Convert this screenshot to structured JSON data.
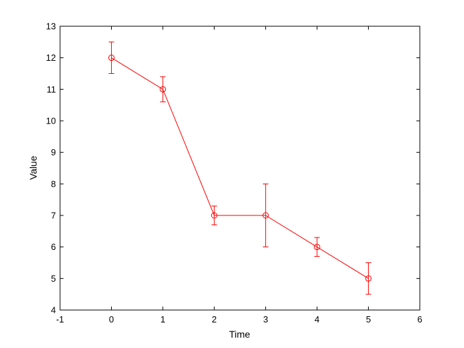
{
  "chart_data": {
    "type": "line",
    "title": "",
    "xlabel": "Time",
    "ylabel": "Value",
    "xlim": [
      -1,
      6
    ],
    "ylim": [
      4,
      13
    ],
    "xticks": [
      -1,
      0,
      1,
      2,
      3,
      4,
      5,
      6
    ],
    "yticks": [
      4,
      5,
      6,
      7,
      8,
      9,
      10,
      11,
      12,
      13
    ],
    "grid": false,
    "legend": "none",
    "series": [
      {
        "color": "#ff0000",
        "marker": "circle",
        "x": [
          0,
          1,
          2,
          3,
          4,
          5
        ],
        "y": [
          12,
          11,
          7,
          7,
          6,
          5
        ],
        "error_lower": [
          0.5,
          0.4,
          0.3,
          1.0,
          0.3,
          0.5
        ],
        "error_upper": [
          0.5,
          0.4,
          0.3,
          1.0,
          0.3,
          0.5
        ]
      }
    ]
  }
}
